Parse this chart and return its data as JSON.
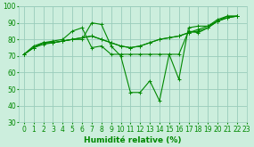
{
  "xlabel": "Humidité relative (%)",
  "bg_color": "#cceedd",
  "grid_color": "#99ccbb",
  "line_color": "#008800",
  "series": [
    [
      71,
      75,
      77,
      78,
      79,
      80,
      80,
      90,
      89,
      76,
      70,
      48,
      48,
      55,
      43,
      71,
      56,
      87,
      88,
      88,
      92,
      94,
      94
    ],
    [
      71,
      75,
      78,
      78,
      79,
      80,
      81,
      82,
      80,
      78,
      76,
      75,
      76,
      78,
      80,
      81,
      82,
      84,
      85,
      87,
      91,
      93,
      94
    ],
    [
      71,
      75,
      78,
      78,
      79,
      80,
      81,
      82,
      80,
      78,
      76,
      75,
      76,
      78,
      80,
      81,
      82,
      84,
      86,
      88,
      91,
      93,
      94
    ],
    [
      71,
      76,
      78,
      79,
      80,
      85,
      87,
      75,
      76,
      71,
      71,
      71,
      71,
      71,
      71,
      71,
      71,
      85,
      84,
      87,
      91,
      94,
      94
    ]
  ],
  "ylim": [
    30,
    100
  ],
  "xlim": [
    -0.5,
    23
  ],
  "yticks": [
    30,
    40,
    50,
    60,
    70,
    80,
    90,
    100
  ],
  "xticks": [
    0,
    1,
    2,
    3,
    4,
    5,
    6,
    7,
    8,
    9,
    10,
    11,
    12,
    13,
    14,
    15,
    16,
    17,
    18,
    19,
    20,
    21,
    22,
    23
  ],
  "tick_fontsize": 5.5,
  "xlabel_fontsize": 6.5
}
